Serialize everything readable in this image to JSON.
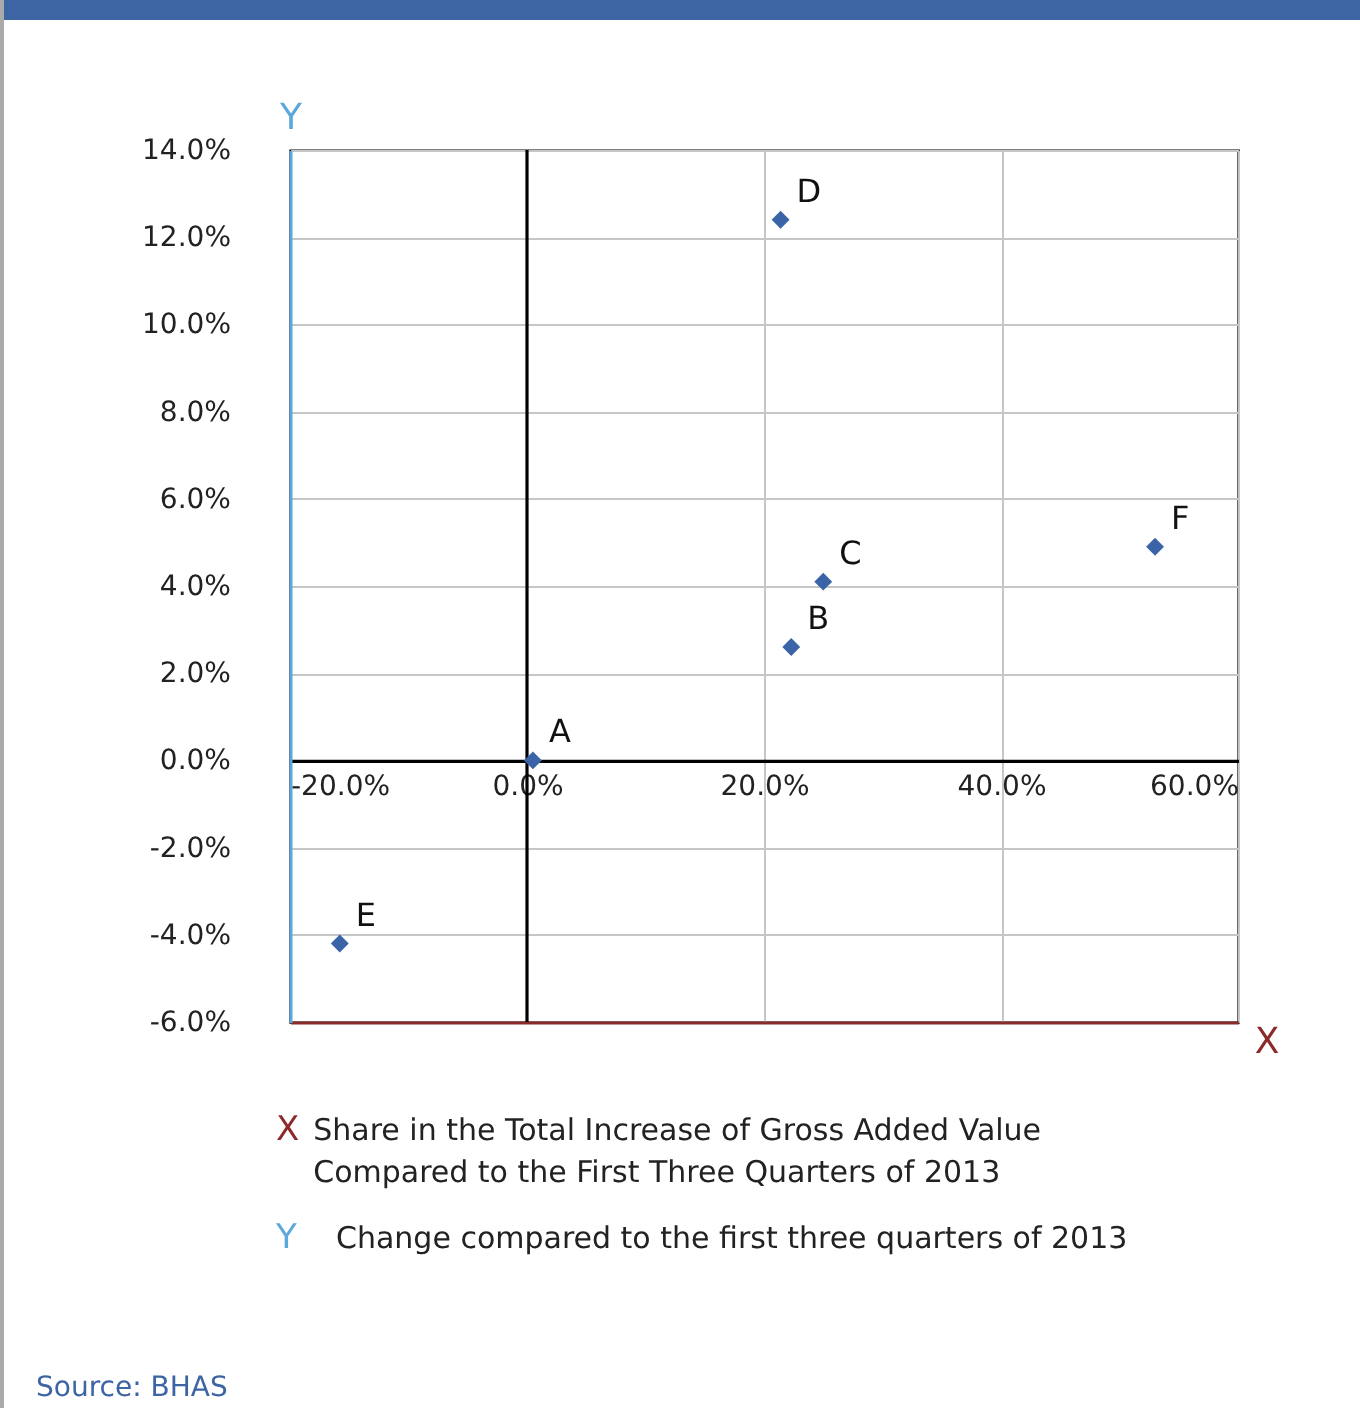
{
  "chart_data": {
    "type": "scatter",
    "xlabel": "X",
    "ylabel": "Y",
    "x": [
      0.5,
      22.3,
      25.0,
      21.4,
      -15.8,
      53.0
    ],
    "series": [
      {
        "color": "#3b64a8",
        "values": [
          0.0,
          2.6,
          4.1,
          12.4,
          -4.2,
          4.9
        ]
      }
    ],
    "xlim": [
      -20,
      60
    ],
    "ylim": [
      -6,
      14
    ],
    "xticks": [
      {
        "value": -20,
        "label": "-20.0%"
      },
      {
        "value": 0,
        "label": "0.0%"
      },
      {
        "value": 20,
        "label": "20.0%"
      },
      {
        "value": 40,
        "label": "40.0%"
      },
      {
        "value": 60,
        "label": "60.0%"
      }
    ],
    "yticks": [
      {
        "value": -6,
        "label": "-6.0%"
      },
      {
        "value": -4,
        "label": "-4.0%"
      },
      {
        "value": -2,
        "label": "-2.0%"
      },
      {
        "value": 0,
        "label": "0.0%"
      },
      {
        "value": 2,
        "label": "2.0%"
      },
      {
        "value": 4,
        "label": "4.0%"
      },
      {
        "value": 6,
        "label": "6.0%"
      },
      {
        "value": 8,
        "label": "8.0%"
      },
      {
        "value": 10,
        "label": "10.0%"
      },
      {
        "value": 12,
        "label": "12.0%"
      },
      {
        "value": 14,
        "label": "14.0%"
      }
    ],
    "grid": true,
    "marker": "diamond",
    "ref_lines": [
      {
        "axis": "x",
        "value": 0,
        "color": "#000000"
      }
    ],
    "annotations": [
      {
        "text": "A",
        "x": 0.5,
        "y": 0.0
      },
      {
        "text": "B",
        "x": 22.3,
        "y": 2.6
      },
      {
        "text": "C",
        "x": 25.0,
        "y": 4.1
      },
      {
        "text": "D",
        "x": 21.4,
        "y": 12.4
      },
      {
        "text": "E",
        "x": -15.8,
        "y": -4.2
      },
      {
        "text": "F",
        "x": 53.0,
        "y": 4.9
      },
      "Share in the Total Increase of Gross Added Value Compared to the First Three Quarters of 2013",
      "Change compared to the first three quarters of 2013",
      "Source: BHAS"
    ]
  }
}
